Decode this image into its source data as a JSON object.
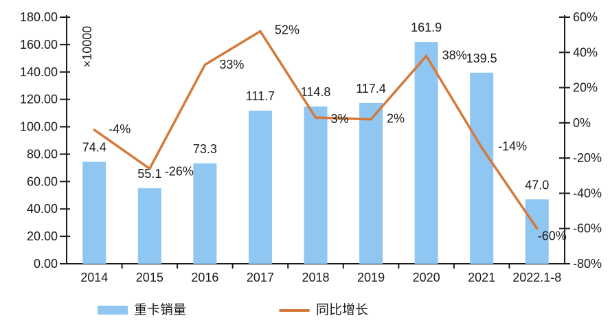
{
  "chart_data": {
    "type": "bar+line",
    "categories": [
      "2014",
      "2015",
      "2016",
      "2017",
      "2018",
      "2019",
      "2020",
      "2021",
      "2022.1-8"
    ],
    "series": [
      {
        "name": "重卡销量",
        "type": "bar",
        "axis": "left",
        "values": [
          74.4,
          55.1,
          73.3,
          111.7,
          114.8,
          117.4,
          161.9,
          139.5,
          47.0
        ],
        "labels": [
          "74.4",
          "55.1",
          "73.3",
          "111.7",
          "114.8",
          "117.4",
          "161.9",
          "139.5",
          "47.0"
        ]
      },
      {
        "name": "同比增长",
        "type": "line",
        "axis": "right",
        "values_pct": [
          -4,
          -26,
          33,
          52,
          3,
          2,
          38,
          -14,
          -60
        ],
        "labels": [
          "-4%",
          "-26%",
          "33%",
          "52%",
          "3%",
          "2%",
          "38%",
          "-14%",
          "-60%"
        ]
      }
    ],
    "left_axis": {
      "min": 0,
      "max": 180,
      "step": 20,
      "unit_label": "×10000",
      "tick_labels": [
        "0.00",
        "20.00",
        "40.00",
        "60.00",
        "80.00",
        "100.00",
        "120.00",
        "140.00",
        "160.00",
        "180.00"
      ]
    },
    "right_axis": {
      "min": -80,
      "max": 60,
      "step": 20,
      "tick_labels": [
        "-80%",
        "-60%",
        "-40%",
        "-20%",
        "0%",
        "20%",
        "40%",
        "60%"
      ]
    },
    "legend": {
      "position": "bottom",
      "items": [
        {
          "label": "重卡销量",
          "marker": "bar"
        },
        {
          "label": "同比增长",
          "marker": "line"
        }
      ]
    },
    "colors": {
      "bar": "#90C6F2",
      "line": "#D5793A",
      "text": "#1A1A1A",
      "axis": "#1A1A1A",
      "background": "#FFFFFF"
    },
    "grid": false
  }
}
